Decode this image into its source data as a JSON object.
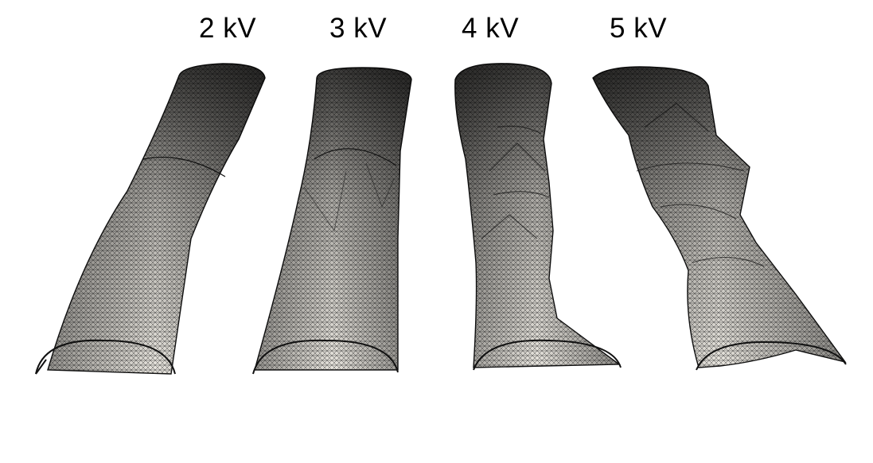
{
  "figure": {
    "labels": [
      "2 kV",
      "3 kV",
      "4 kV",
      "5 kV"
    ]
  }
}
